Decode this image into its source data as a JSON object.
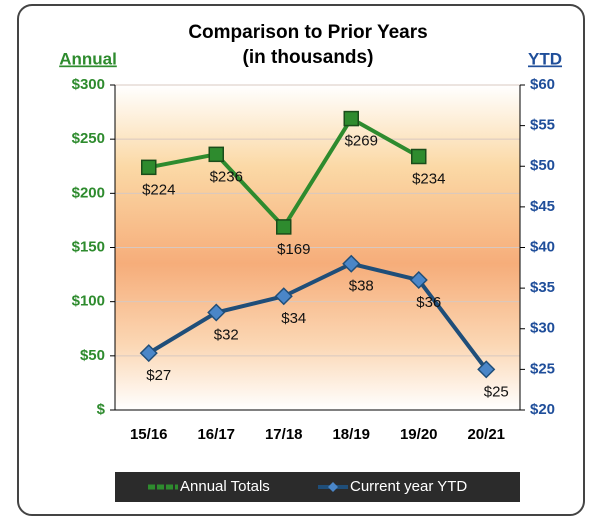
{
  "chart_data": {
    "type": "line",
    "title": "Comparison to Prior Years",
    "subtitle": "(in thousands)",
    "y_label": "Annual",
    "y2_label": "YTD",
    "categories": [
      "15/16",
      "16/17",
      "17/18",
      "18/19",
      "19/20",
      "20/21"
    ],
    "series": [
      {
        "name": "Annual Totals",
        "color": "#2e8b2e",
        "marker": "square",
        "values": [
          224,
          236,
          169,
          269,
          234,
          null
        ],
        "value_labels": [
          "$224",
          "$236",
          "$169",
          "$269",
          "$234",
          null
        ]
      },
      {
        "name": "Current year YTD",
        "color": "#1f4e79",
        "marker": "diamond",
        "axis": "y2",
        "values": [
          27,
          32,
          34,
          38,
          36,
          25
        ],
        "value_labels": [
          "$27",
          "$32",
          "$34",
          "$38",
          "$36",
          "$25"
        ]
      }
    ],
    "ylim": [
      0,
      300
    ],
    "yticks": [
      {
        "value": 0,
        "label": "$"
      },
      {
        "value": 50,
        "label": "$50"
      },
      {
        "value": 100,
        "label": "$100"
      },
      {
        "value": 150,
        "label": "$150"
      },
      {
        "value": 200,
        "label": "$200"
      },
      {
        "value": 250,
        "label": "$250"
      },
      {
        "value": 300,
        "label": "$300"
      }
    ],
    "y2lim": [
      20,
      60
    ],
    "y2ticks": [
      {
        "value": 20,
        "label": "$20"
      },
      {
        "value": 25,
        "label": "$25"
      },
      {
        "value": 30,
        "label": "$30"
      },
      {
        "value": 35,
        "label": "$35"
      },
      {
        "value": 40,
        "label": "$40"
      },
      {
        "value": 45,
        "label": "$45"
      },
      {
        "value": 50,
        "label": "$50"
      },
      {
        "value": 55,
        "label": "$55"
      },
      {
        "value": 60,
        "label": "$60"
      }
    ],
    "grid": true,
    "legend": "bottom"
  }
}
